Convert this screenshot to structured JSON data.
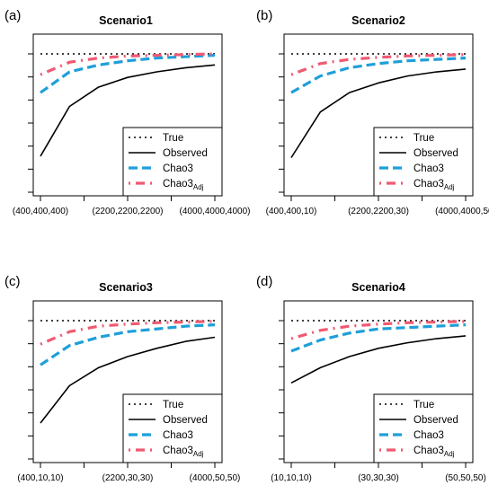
{
  "chart_data": [
    {
      "type": "line",
      "letter": "(a)",
      "title": "Scenario1",
      "x": [
        400,
        1000,
        1600,
        2200,
        2800,
        3400,
        4000
      ],
      "xticks": [
        400,
        2200,
        4000
      ],
      "xtick_labels": [
        "(400,400,400)",
        "(2200,2200,2200)",
        "(4000,4000,4000)"
      ],
      "xlim": [
        400,
        4000
      ],
      "ylim": [
        0,
        1
      ],
      "yticks": [
        0.0,
        0.1667,
        0.3333,
        0.5,
        0.6667,
        0.8333,
        1.0
      ],
      "grid": false,
      "legend_position": "bottom-right",
      "series": [
        {
          "name": "True",
          "style": "dotted",
          "color": "#000000",
          "values": [
            1,
            1,
            1,
            1,
            1,
            1,
            1
          ]
        },
        {
          "name": "Observed",
          "style": "solid",
          "color": "#000000",
          "values": [
            0.26,
            0.62,
            0.76,
            0.83,
            0.87,
            0.9,
            0.92
          ]
        },
        {
          "name": "Chao3",
          "style": "dashed",
          "color": "#1e9fd9",
          "values": [
            0.72,
            0.87,
            0.92,
            0.95,
            0.97,
            0.98,
            0.99
          ]
        },
        {
          "name": "Chao3",
          "sub": "Adj",
          "style": "dotdash",
          "color": "#ef5a72",
          "values": [
            0.85,
            0.94,
            0.97,
            0.985,
            0.99,
            0.995,
            1.0
          ]
        }
      ]
    },
    {
      "type": "line",
      "letter": "(b)",
      "title": "Scenario2",
      "x": [
        10,
        16.67,
        23.33,
        30,
        36.67,
        43.33,
        50
      ],
      "xticks": [
        10,
        30,
        50
      ],
      "xtick_labels": [
        "(400,400,10)",
        "(2200,2200,30)",
        "(4000,4000,50)"
      ],
      "xlim": [
        10,
        50
      ],
      "ylim": [
        0,
        1
      ],
      "yticks": [
        0.0,
        0.1667,
        0.3333,
        0.5,
        0.6667,
        0.8333,
        1.0
      ],
      "grid": false,
      "legend_position": "bottom-right",
      "series": [
        {
          "name": "True",
          "style": "dotted",
          "color": "#000000",
          "values": [
            1,
            1,
            1,
            1,
            1,
            1,
            1
          ]
        },
        {
          "name": "Observed",
          "style": "solid",
          "color": "#000000",
          "values": [
            0.25,
            0.58,
            0.72,
            0.79,
            0.84,
            0.87,
            0.89
          ]
        },
        {
          "name": "Chao3",
          "style": "dashed",
          "color": "#1e9fd9",
          "values": [
            0.72,
            0.84,
            0.9,
            0.93,
            0.95,
            0.96,
            0.97
          ]
        },
        {
          "name": "Chao3",
          "sub": "Adj",
          "style": "dotdash",
          "color": "#ef5a72",
          "values": [
            0.85,
            0.93,
            0.96,
            0.975,
            0.985,
            0.99,
            0.995
          ]
        }
      ]
    },
    {
      "type": "line",
      "letter": "(c)",
      "title": "Scenario3",
      "x": [
        10,
        16.67,
        23.33,
        30,
        36.67,
        43.33,
        50
      ],
      "xticks": [
        10,
        30,
        50
      ],
      "xtick_labels": [
        "(400,10,10)",
        "(2200,30,30)",
        "(4000,50,50)"
      ],
      "xlim": [
        10,
        50
      ],
      "ylim": [
        0,
        1
      ],
      "yticks": [
        0.0,
        0.1667,
        0.3333,
        0.5,
        0.6667,
        0.8333,
        1.0
      ],
      "grid": false,
      "legend_position": "bottom-right",
      "series": [
        {
          "name": "True",
          "style": "dotted",
          "color": "#000000",
          "values": [
            1,
            1,
            1,
            1,
            1,
            1,
            1
          ]
        },
        {
          "name": "Observed",
          "style": "solid",
          "color": "#000000",
          "values": [
            0.26,
            0.53,
            0.66,
            0.74,
            0.8,
            0.85,
            0.88
          ]
        },
        {
          "name": "Chao3",
          "style": "dashed",
          "color": "#1e9fd9",
          "values": [
            0.68,
            0.82,
            0.88,
            0.92,
            0.94,
            0.96,
            0.97
          ]
        },
        {
          "name": "Chao3",
          "sub": "Adj",
          "style": "dotdash",
          "color": "#ef5a72",
          "values": [
            0.83,
            0.92,
            0.96,
            0.975,
            0.985,
            0.99,
            0.995
          ]
        }
      ]
    },
    {
      "type": "line",
      "letter": "(d)",
      "title": "Scenario4",
      "x": [
        10,
        16.67,
        23.33,
        30,
        36.67,
        43.33,
        50
      ],
      "xticks": [
        10,
        30,
        50
      ],
      "xtick_labels": [
        "(10,10,10)",
        "(30,30,30)",
        "(50,50,50)"
      ],
      "xlim": [
        10,
        50
      ],
      "ylim": [
        0,
        1
      ],
      "yticks": [
        0.0,
        0.1667,
        0.3333,
        0.5,
        0.6667,
        0.8333,
        1.0
      ],
      "grid": false,
      "legend_position": "bottom-right",
      "series": [
        {
          "name": "True",
          "style": "dotted",
          "color": "#000000",
          "values": [
            1,
            1,
            1,
            1,
            1,
            1,
            1
          ]
        },
        {
          "name": "Observed",
          "style": "solid",
          "color": "#000000",
          "values": [
            0.55,
            0.66,
            0.74,
            0.8,
            0.84,
            0.87,
            0.89
          ]
        },
        {
          "name": "Chao3",
          "style": "dashed",
          "color": "#1e9fd9",
          "values": [
            0.78,
            0.86,
            0.91,
            0.94,
            0.95,
            0.96,
            0.97
          ]
        },
        {
          "name": "Chao3",
          "sub": "Adj",
          "style": "dotdash",
          "color": "#ef5a72",
          "values": [
            0.87,
            0.93,
            0.96,
            0.975,
            0.985,
            0.99,
            0.995
          ]
        }
      ]
    }
  ]
}
